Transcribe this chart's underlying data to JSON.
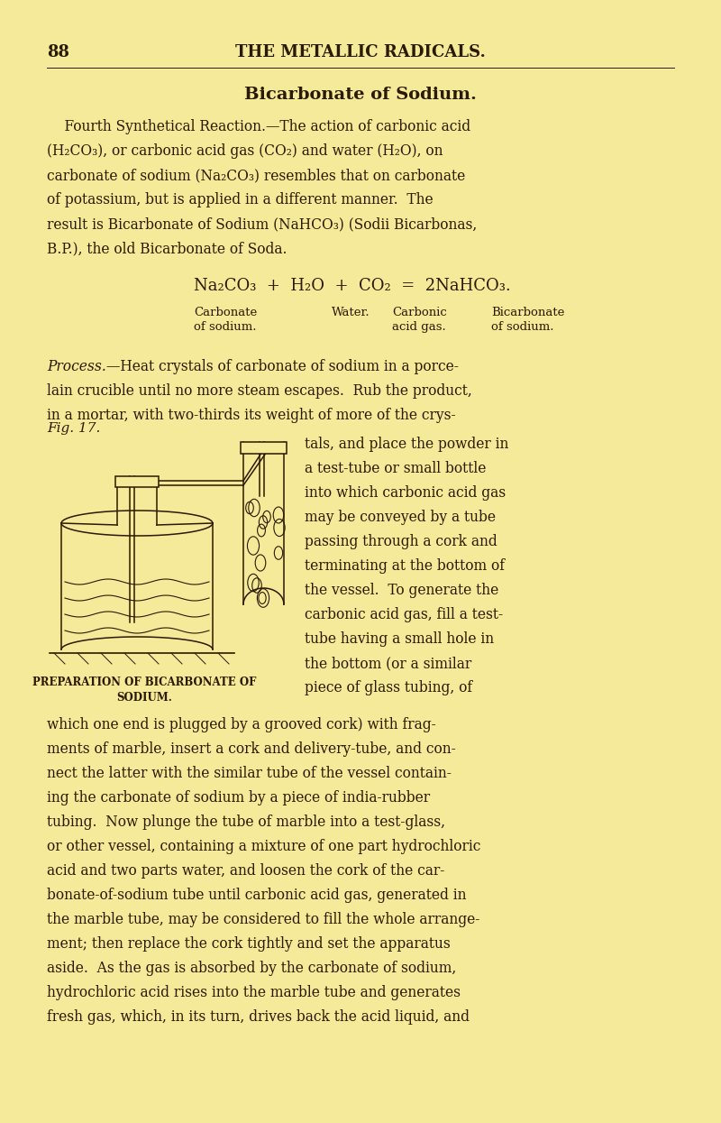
{
  "bg_color": "#f5e99a",
  "text_color": "#2a1a00",
  "page_number": "88",
  "header": "THE METALLIC RADICALS.",
  "title": "Bicarbonate of Sodium.",
  "eq_line": "Na₂CO₃  +  H₂O  +  CO₂  =  2NaHCO₃.",
  "label1": "Carbonate\nof sodium.",
  "label2": "Water.",
  "label3": "Carbonic\nacid gas.",
  "label4": "Bicarbonate\nof sodium.",
  "fig_label": "Fig. 17.",
  "fig_caption": "PREPARATION OF BICARBONATE OF\nSODIUM.",
  "para1_lines": [
    "    Fourth Synthetical Reaction.—The action of carbonic acid",
    "(H₂CO₃), or carbonic acid gas (CO₂) and water (H₂O), on",
    "carbonate of sodium (Na₂CO₃) resembles that on carbonate",
    "of potassium, but is applied in a different manner.  The",
    "result is Bicarbonate of Sodium (NaHCO₃) (Sodii Bicarbonas,",
    "B.P.), the old Bicarbonate of Soda."
  ],
  "process_word": "Process.",
  "process_rest": "—Heat crystals of carbonate of sodium in a porce-",
  "process_full_lines": [
    "lain crucible until no more steam escapes.  Rub the product,",
    "in a mortar, with two-thirds its weight of more of the crys-"
  ],
  "right_col_lines": [
    "tals, and place the powder in",
    "a test-tube or small bottle",
    "into which carbonic acid gas",
    "may be conveyed by a tube",
    "passing through a cork and",
    "terminating at the bottom of",
    "the vessel.  To generate the",
    "carbonic acid gas, fill a test-",
    "tube having a small hole in",
    "the bottom (or a similar",
    "piece of glass tubing, of"
  ],
  "bottom_lines": [
    "which one end is plugged by a grooved cork) with frag-",
    "ments of marble, insert a cork and delivery-tube, and con-",
    "nect the latter with the similar tube of the vessel contain-",
    "ing the carbonate of sodium by a piece of india-rubber",
    "tubing.  Now plunge the tube of marble into a test-glass,",
    "or other vessel, containing a mixture of one part hydrochloric",
    "acid and two parts water, and loosen the cork of the car-",
    "bonate-of-sodium tube until carbonic acid gas, generated in",
    "the marble tube, may be considered to fill the whole arrange-",
    "ment; then replace the cork tightly and set the apparatus",
    "aside.  As the gas is absorbed by the carbonate of sodium,",
    "hydrochloric acid rises into the marble tube and generates",
    "fresh gas, which, in its turn, drives back the acid liquid, and"
  ]
}
